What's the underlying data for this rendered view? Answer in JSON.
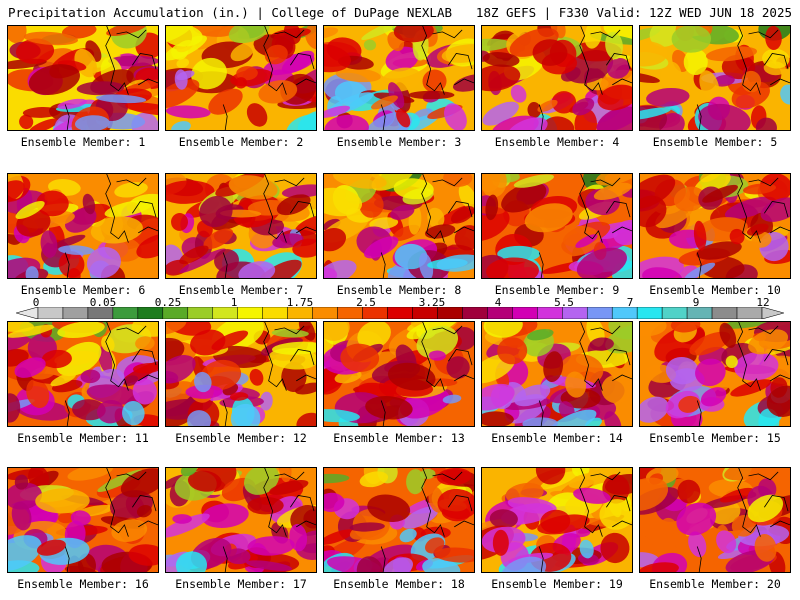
{
  "header": {
    "left": "Precipitation Accumulation (in.) | College of DuPage NEXLAB",
    "right": "18Z GEFS | F330 Valid: 12Z WED JUN 18 2025"
  },
  "colorbar": {
    "tick_labels": [
      "0",
      "0.05",
      "0.25",
      "1",
      "1.75",
      "2.5",
      "3.25",
      "4",
      "5.5",
      "7",
      "9",
      "12"
    ],
    "colors": [
      "#e6e6e6",
      "#c8c8c8",
      "#a0a0a0",
      "#787878",
      "#3c9b3c",
      "#1e7d1e",
      "#5aaa28",
      "#9bcd28",
      "#d2e61e",
      "#f5f500",
      "#fadc00",
      "#fab400",
      "#fa8c00",
      "#f56400",
      "#eb3200",
      "#dc0000",
      "#c80000",
      "#aa0000",
      "#a0003c",
      "#b40078",
      "#d200b4",
      "#d232dc",
      "#b464f0",
      "#7896f5",
      "#50c8fa",
      "#28e6f0",
      "#50d2c8",
      "#64b4b4",
      "#8c8c8c",
      "#aaaaaa",
      "#c8c8c8"
    ]
  },
  "members": [
    {
      "label": "Ensemble Member: 1"
    },
    {
      "label": "Ensemble Member: 2"
    },
    {
      "label": "Ensemble Member: 3"
    },
    {
      "label": "Ensemble Member: 4"
    },
    {
      "label": "Ensemble Member: 5"
    },
    {
      "label": "Ensemble Member: 6"
    },
    {
      "label": "Ensemble Member: 7"
    },
    {
      "label": "Ensemble Member: 8"
    },
    {
      "label": "Ensemble Member: 9"
    },
    {
      "label": "Ensemble Member: 10"
    },
    {
      "label": "Ensemble Member: 11"
    },
    {
      "label": "Ensemble Member: 12"
    },
    {
      "label": "Ensemble Member: 13"
    },
    {
      "label": "Ensemble Member: 14"
    },
    {
      "label": "Ensemble Member: 15"
    },
    {
      "label": "Ensemble Member: 16"
    },
    {
      "label": "Ensemble Member: 17"
    },
    {
      "label": "Ensemble Member: 18"
    },
    {
      "label": "Ensemble Member: 19"
    },
    {
      "label": "Ensemble Member: 20"
    }
  ]
}
